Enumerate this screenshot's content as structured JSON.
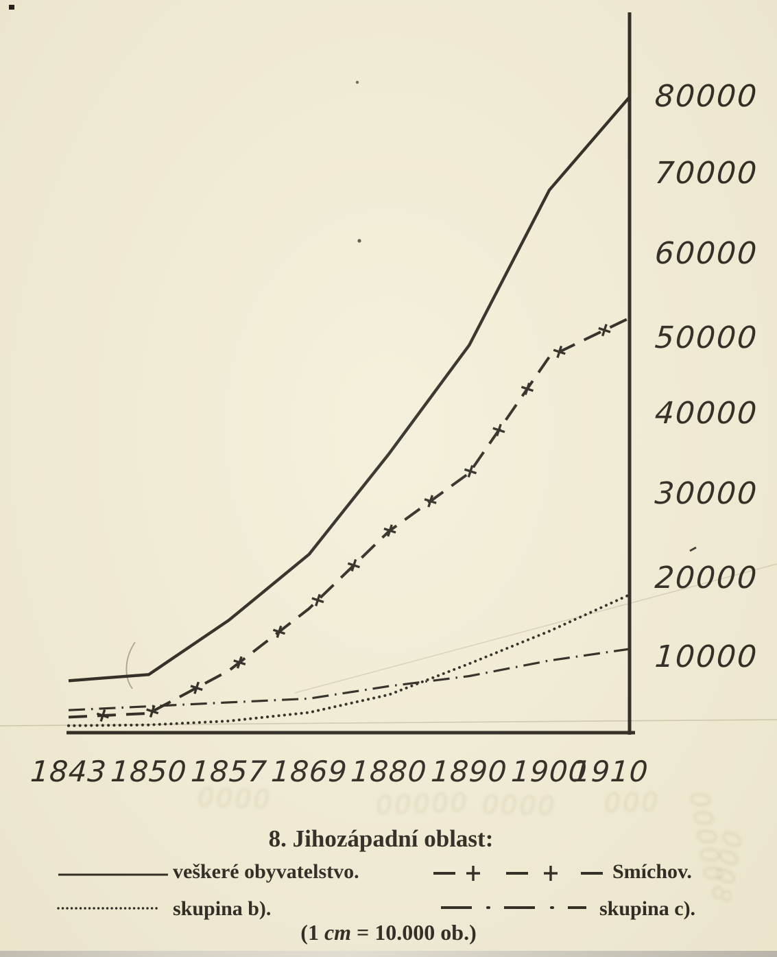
{
  "figure": {
    "title": "8. Jihozápadní oblast:",
    "caption_parts": {
      "open": "(1 ",
      "unit": "cm",
      "rest": " = 10.000 ob.)"
    },
    "paper_color": "#f4efd8",
    "ink_color": "#29251e"
  },
  "legend": [
    {
      "label": "veškeré obyvatelstvo.",
      "style": "solid"
    },
    {
      "label": "Smíchov.",
      "style": "dash-plus"
    },
    {
      "label": "skupina b).",
      "style": "dotted"
    },
    {
      "label": "skupina c).",
      "style": "dash-dot"
    }
  ],
  "chart_data": {
    "type": "line",
    "title": "8. Jihozápadní oblast",
    "scale_note": "1 cm = 10.000 ob.",
    "categories": [
      "1843",
      "1850",
      "1857",
      "1869",
      "1880",
      "1890",
      "1900",
      "1910"
    ],
    "series": [
      {
        "name": "veškeré obyvatelstvo",
        "style": "solid",
        "values": [
          6700,
          7500,
          14500,
          23000,
          36000,
          50000,
          70000,
          82000
        ]
      },
      {
        "name": "Smíchov",
        "style": "dash-plus",
        "values": [
          2000,
          2500,
          8000,
          16000,
          26000,
          33500,
          48500,
          53500
        ]
      },
      {
        "name": "skupina b)",
        "style": "dotted",
        "values": [
          900,
          1000,
          1500,
          2600,
          4900,
          8900,
          13100,
          17800
        ]
      },
      {
        "name": "skupina c)",
        "style": "dash-dot",
        "values": [
          2900,
          3400,
          3900,
          4400,
          6000,
          7300,
          9300,
          10800
        ]
      }
    ],
    "y_tick_labels": [
      "10000",
      "20000",
      "30000",
      "40000",
      "50000",
      "60000",
      "70000",
      "80000"
    ],
    "ylim": [
      0,
      85000
    ],
    "axis_position": "right",
    "grid": false,
    "legend_position": "below"
  },
  "artifacts": {
    "ghosts": [
      "0000",
      "00000",
      "0000",
      "000",
      "00000",
      "0008"
    ]
  }
}
